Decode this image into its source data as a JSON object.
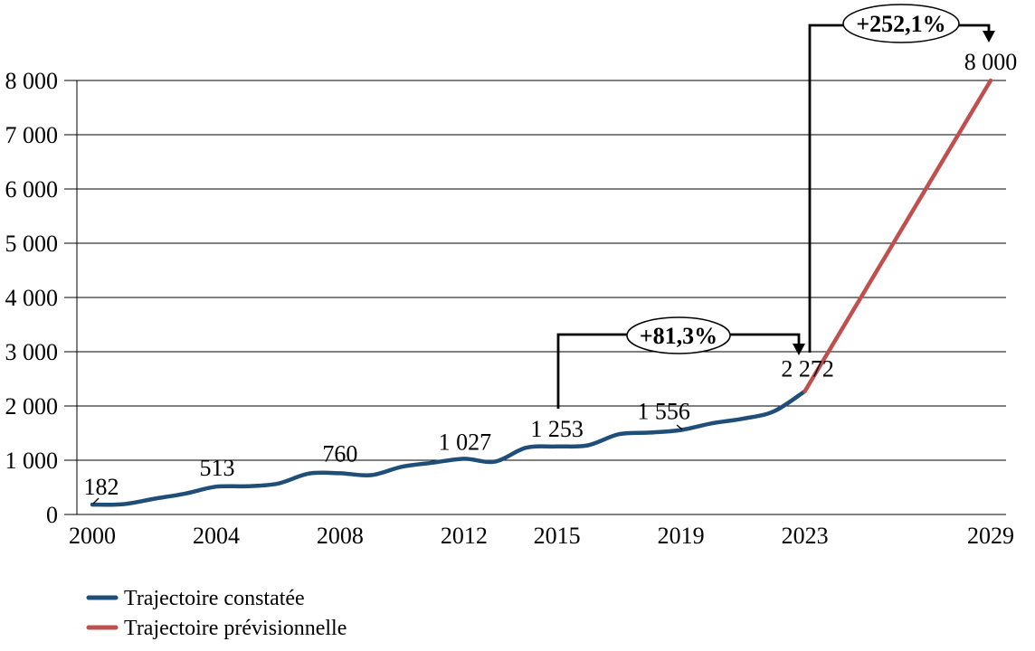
{
  "chart_data": {
    "type": "line",
    "title": "",
    "xlabel": "",
    "ylabel": "",
    "xlim": [
      2000,
      2029
    ],
    "ylim": [
      0,
      8000
    ],
    "grid": true,
    "legend_position": "bottom-left",
    "y_tick_labels": [
      "0",
      "1 000",
      "2 000",
      "3 000",
      "4 000",
      "5 000",
      "6 000",
      "7 000",
      "8 000"
    ],
    "x_tick_years": [
      2000,
      2004,
      2008,
      2012,
      2015,
      2019,
      2023,
      2029
    ],
    "x_tick_labels": [
      "2000",
      "2004",
      "2008",
      "2012",
      "2015",
      "2019",
      "2023",
      "2029"
    ],
    "series": [
      {
        "name": "Trajectoire constatée",
        "color": "#1F4E79",
        "start_year": 2000,
        "values": [
          182,
          190,
          290,
          385,
          513,
          520,
          570,
          755,
          760,
          725,
          880,
          955,
          1027,
          975,
          1230,
          1253,
          1275,
          1480,
          1510,
          1556,
          1680,
          1765,
          1900,
          2272
        ]
      },
      {
        "name": "Trajectoire prévisionnelle",
        "color": "#C0504D",
        "start_year": 2023,
        "years": [
          2023,
          2029
        ],
        "values": [
          2272,
          8000
        ]
      }
    ],
    "data_labels": [
      {
        "text": "182",
        "year": 2000,
        "value": 182
      },
      {
        "text": "513",
        "year": 2004,
        "value": 513
      },
      {
        "text": "760",
        "year": 2008,
        "value": 760
      },
      {
        "text": "1 027",
        "year": 2012,
        "value": 1027
      },
      {
        "text": "1 253",
        "year": 2015,
        "value": 1253
      },
      {
        "text": "1 556",
        "year": 2019,
        "value": 1556
      },
      {
        "text": "2 272",
        "year": 2023,
        "value": 2272
      },
      {
        "text": "8 000",
        "year": 2029,
        "value": 8000
      }
    ],
    "annotations": [
      {
        "label": "+81,3%",
        "from_year": 2015,
        "to_year": 2023
      },
      {
        "label": "+252,1%",
        "from_year": 2023,
        "to_year": 2029
      }
    ]
  }
}
